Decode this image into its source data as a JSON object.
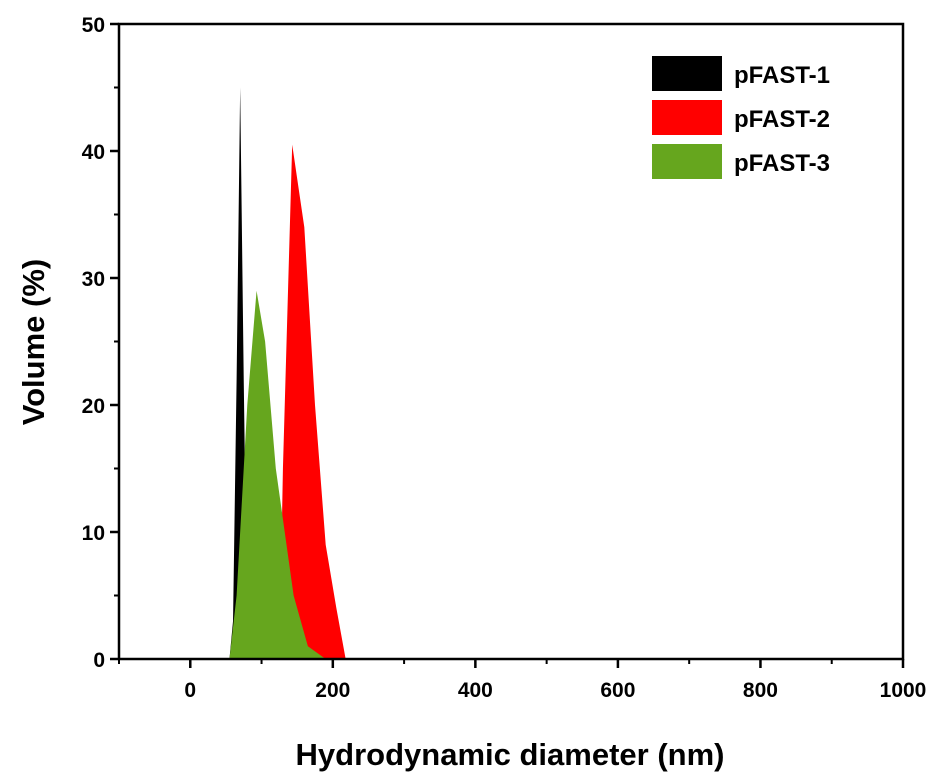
{
  "chart_data": {
    "type": "area",
    "xlabel": "Hydrodynamic diameter (nm)",
    "ylabel": "Volume (%)",
    "xlim": [
      -100,
      1000
    ],
    "ylim": [
      0,
      50
    ],
    "x_ticks": [
      0,
      200,
      400,
      600,
      800,
      1000
    ],
    "y_ticks": [
      0,
      10,
      20,
      30,
      40,
      50
    ],
    "grid": false,
    "legend_position": "top-right",
    "series": [
      {
        "name": "pFAST-1",
        "color": "#000000",
        "points": [
          [
            -100,
            0
          ],
          [
            55,
            0
          ],
          [
            60,
            3
          ],
          [
            65,
            22
          ],
          [
            70,
            45
          ],
          [
            75,
            22
          ],
          [
            80,
            2
          ],
          [
            85,
            0
          ],
          [
            1000,
            0
          ]
        ]
      },
      {
        "name": "pFAST-2",
        "color": "#ff0000",
        "points": [
          [
            -100,
            0
          ],
          [
            125,
            0
          ],
          [
            130,
            15
          ],
          [
            143,
            40.5
          ],
          [
            160,
            34
          ],
          [
            175,
            20
          ],
          [
            190,
            9
          ],
          [
            205,
            4
          ],
          [
            218,
            0
          ],
          [
            1000,
            0
          ]
        ]
      },
      {
        "name": "pFAST-3",
        "color": "#66a61e",
        "points": [
          [
            -100,
            0
          ],
          [
            55,
            0
          ],
          [
            65,
            5
          ],
          [
            80,
            20
          ],
          [
            93,
            29
          ],
          [
            105,
            25
          ],
          [
            120,
            15
          ],
          [
            145,
            5
          ],
          [
            165,
            1
          ],
          [
            190,
            0
          ],
          [
            1000,
            0
          ]
        ]
      }
    ]
  }
}
